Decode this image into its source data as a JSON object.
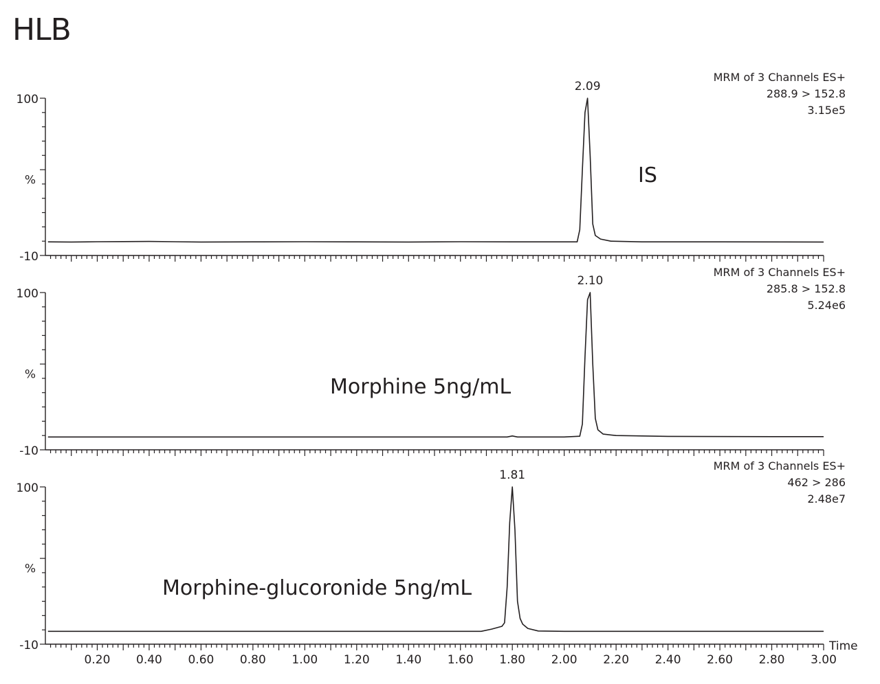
{
  "title": "HLB",
  "chart_data": [
    {
      "type": "line",
      "channel": "MRM of 3 Channels ES+",
      "transition": "288.9 > 152.8",
      "intensity": "3.15e5",
      "annotation": "IS",
      "peak_label": "2.09",
      "ylim": [
        -10,
        100
      ],
      "y_ticks": [
        "100",
        "%",
        "-10"
      ],
      "xlim": [
        0.0,
        3.0
      ],
      "peak": {
        "rt": 2.09,
        "height": 100,
        "width": 0.012
      },
      "baseline": -1,
      "x": [
        0.01,
        0.1,
        0.2,
        0.3,
        0.4,
        0.6,
        0.8,
        1.0,
        1.2,
        1.4,
        1.6,
        1.8,
        2.0,
        2.05,
        2.06,
        2.07,
        2.08,
        2.09,
        2.1,
        2.11,
        2.12,
        2.14,
        2.18,
        2.3,
        2.6,
        3.0
      ],
      "y": [
        -0.5,
        -0.6,
        -0.4,
        -0.3,
        -0.2,
        -0.6,
        -0.5,
        -0.4,
        -0.5,
        -0.6,
        -0.4,
        -0.5,
        -0.5,
        -0.5,
        8,
        50,
        90,
        100,
        60,
        12,
        4,
        1.5,
        0,
        -0.5,
        -0.5,
        -0.6
      ]
    },
    {
      "type": "line",
      "channel": "MRM of 3 Channels ES+",
      "transition": "285.8 > 152.8",
      "intensity": "5.24e6",
      "annotation": "Morphine 5ng/mL",
      "peak_label": "2.10",
      "ylim": [
        -10,
        100
      ],
      "y_ticks": [
        "100",
        "%",
        "-10"
      ],
      "xlim": [
        0.0,
        3.0
      ],
      "x": [
        0.01,
        0.4,
        0.8,
        1.2,
        1.6,
        1.78,
        1.8,
        1.82,
        2.0,
        2.06,
        2.07,
        2.08,
        2.09,
        2.1,
        2.11,
        2.12,
        2.13,
        2.15,
        2.2,
        2.4,
        2.8,
        3.0
      ],
      "y": [
        -1,
        -1,
        -1,
        -1,
        -1,
        -1,
        -0.3,
        -1,
        -1,
        -0.5,
        8,
        55,
        95,
        100,
        50,
        12,
        4,
        1,
        0,
        -0.6,
        -0.8,
        -0.8
      ]
    },
    {
      "type": "line",
      "channel": "MRM of 3 Channels ES+",
      "transition": "462 > 286",
      "intensity": "2.48e7",
      "annotation": "Morphine-glucoronide 5ng/mL",
      "peak_label": "1.81",
      "ylim": [
        -10,
        100
      ],
      "y_ticks": [
        "100",
        "%",
        "-10"
      ],
      "xlim": [
        0.0,
        3.0
      ],
      "x": [
        0.01,
        0.5,
        1.0,
        1.5,
        1.68,
        1.72,
        1.76,
        1.77,
        1.78,
        1.79,
        1.8,
        1.81,
        1.82,
        1.83,
        1.84,
        1.86,
        1.9,
        2.0,
        2.5,
        3.0
      ],
      "y": [
        -1,
        -1,
        -1,
        -1,
        -1,
        0.5,
        2.5,
        5,
        30,
        75,
        100,
        70,
        20,
        8,
        4,
        1,
        -0.8,
        -1,
        -1,
        -1
      ]
    }
  ],
  "x_axis": {
    "label": "Time",
    "tick_labels": [
      "0.20",
      "0.40",
      "0.60",
      "0.80",
      "1.00",
      "1.20",
      "1.40",
      "1.60",
      "1.80",
      "2.00",
      "2.20",
      "2.40",
      "2.60",
      "2.80",
      "3.00"
    ],
    "tick_values": [
      0.2,
      0.4,
      0.6,
      0.8,
      1.0,
      1.2,
      1.4,
      1.6,
      1.8,
      2.0,
      2.2,
      2.4,
      2.6,
      2.8,
      3.0
    ]
  }
}
